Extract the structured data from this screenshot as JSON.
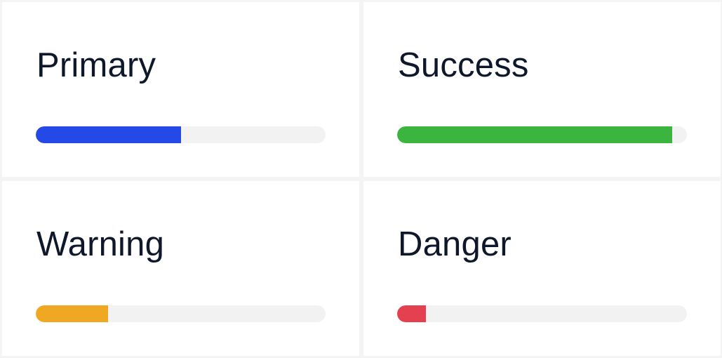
{
  "progress_cards": [
    {
      "label": "Primary",
      "value": 0.5,
      "color": "#2549e6"
    },
    {
      "label": "Success",
      "value": 0.95,
      "color": "#3bb53f"
    },
    {
      "label": "Warning",
      "value": 0.25,
      "color": "#f0a823"
    },
    {
      "label": "Danger",
      "value": 0.1,
      "color": "#e3414f"
    }
  ]
}
